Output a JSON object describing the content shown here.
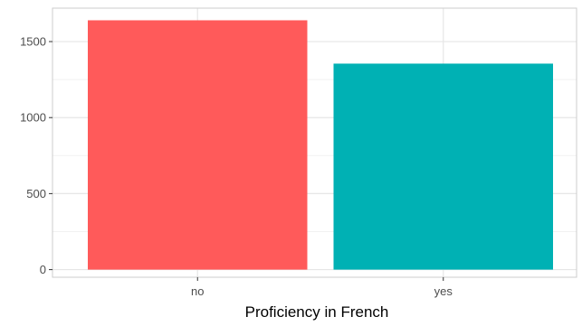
{
  "colors": {
    "panel_border": "#cccccc",
    "grid_major": "#e6e6e6",
    "grid_minor": "#f1f1f1",
    "tick_text": "#4d4d4d",
    "axis_title_text": "#000000"
  },
  "chart_data": {
    "type": "bar",
    "categories": [
      "no",
      "yes"
    ],
    "values": [
      1640,
      1355
    ],
    "colors": [
      "#ff5a5a",
      "#00b1b4"
    ],
    "title": "",
    "xlabel": "Proficiency in French",
    "ylabel": "",
    "ylim": [
      -50,
      1720
    ],
    "yticks": [
      0,
      500,
      1000,
      1500
    ],
    "ytick_labels": [
      "0",
      "500",
      "1000",
      "1500"
    ],
    "grid": true,
    "legend": "none"
  }
}
